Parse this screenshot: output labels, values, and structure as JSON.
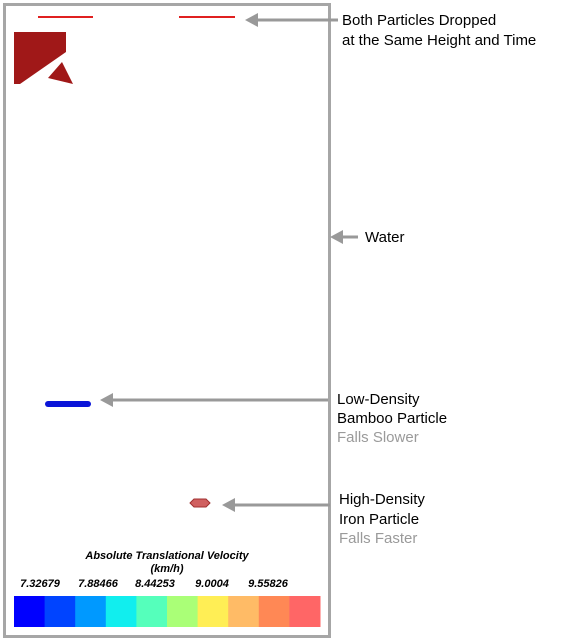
{
  "annotations": {
    "drop": [
      "Both Particles Dropped",
      "at the Same Height and Time"
    ],
    "water": "Water",
    "bamboo": [
      "Low-Density",
      "Bamboo Particle",
      "Falls Slower"
    ],
    "iron": [
      "High-Density",
      "Iron Particle",
      "Falls Faster"
    ]
  },
  "colorbar": {
    "title": "Absolute Translational Velocity",
    "unit": "(km/h)",
    "ticks": [
      "7.32679",
      "7.88466",
      "8.44253",
      "9.0004",
      "9.55826"
    ],
    "colors": [
      "#0000ff",
      "#0044ff",
      "#0099ff",
      "#11eeee",
      "#55ffbb",
      "#aaff77",
      "#ffee55",
      "#ffbb66",
      "#ff8855",
      "#ff6666"
    ]
  }
}
